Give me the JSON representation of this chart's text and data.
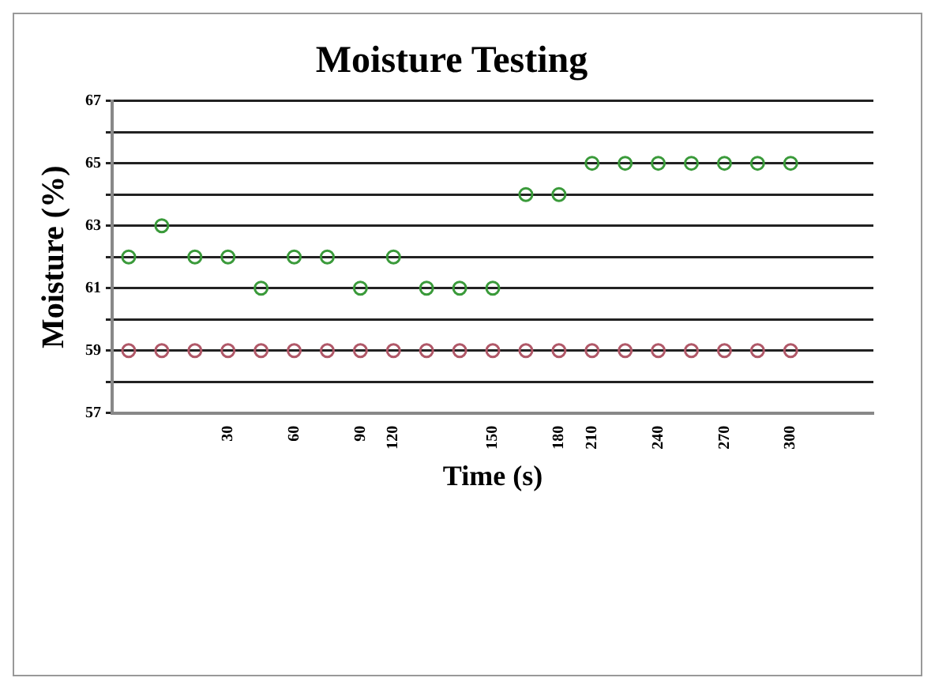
{
  "chart_data": {
    "type": "scatter",
    "title": "Moisture Testing",
    "xlabel": "Time (s)",
    "ylabel": "Moisture (%)",
    "categories": [
      null,
      null,
      null,
      "30",
      null,
      "60",
      null,
      "90",
      "120",
      null,
      null,
      "150",
      null,
      "180",
      "210",
      null,
      "240",
      null,
      "270",
      null,
      "300",
      null,
      null
    ],
    "series": [
      {
        "color": "#3a9a3a",
        "values": [
          62,
          63,
          62,
          62,
          61,
          62,
          62,
          61,
          62,
          61,
          61,
          61,
          64,
          64,
          65,
          65,
          65,
          65,
          65,
          65,
          65,
          null,
          null
        ]
      },
      {
        "color": "#b05868",
        "values": [
          59,
          59,
          59,
          59,
          59,
          59,
          59,
          59,
          59,
          59,
          59,
          59,
          59,
          59,
          59,
          59,
          59,
          59,
          59,
          59,
          59,
          null,
          null
        ]
      }
    ],
    "ylim": [
      57,
      67
    ],
    "yticks": [
      57,
      {
        "value": 58,
        "label": null
      },
      59,
      {
        "value": 60,
        "label": null
      },
      61,
      {
        "value": 62,
        "label": null
      },
      63,
      {
        "value": 64,
        "label": null
      },
      65,
      {
        "value": 66,
        "label": null
      },
      67
    ],
    "grid": "y",
    "legend": false,
    "marker": "circle"
  }
}
